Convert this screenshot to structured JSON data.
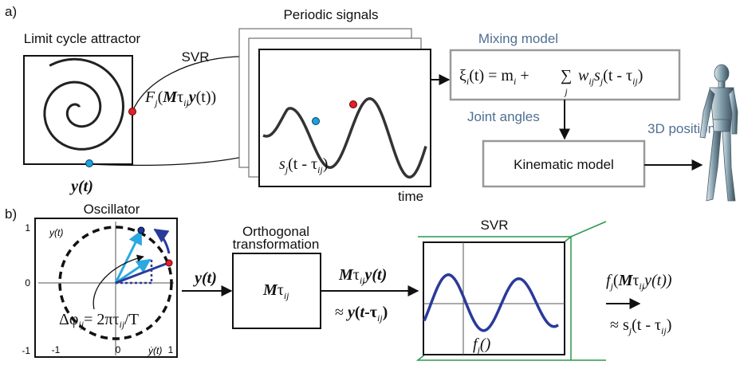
{
  "a": {
    "label": "a)",
    "attractor_title": "Limit cycle attractor",
    "state": "y(t)",
    "svr": "SVR",
    "svr_function": [
      "F",
      "j",
      "(",
      "M",
      "τ",
      "ij",
      "y",
      "(t))"
    ],
    "signals_title": "Periodic signals",
    "signal": [
      "s",
      "j",
      "(t - τ",
      "ij",
      ")"
    ],
    "time_axis": "time",
    "mixing_title": "Mixing model",
    "mixing_formula": [
      "ξ",
      "i",
      "(t) = m",
      "i",
      " + ",
      "∑",
      "j",
      "w",
      "ij",
      "s",
      "j",
      "(t - τ",
      "ij",
      ")"
    ],
    "joint_angles": "Joint angles",
    "positions": "3D positions",
    "kinematic": "Kinematic model"
  },
  "b": {
    "label": "b)",
    "oscillator_title": "Oscillator",
    "y_ticks": [
      "1",
      "0",
      "-1"
    ],
    "x_ticks": [
      "-1",
      "0",
      "1"
    ],
    "y_axis": "y(t)",
    "x_axis": "ẏ(t)",
    "phase": [
      "Δφ",
      "ij",
      "= 2πτ",
      "ij",
      "/T"
    ],
    "input": "y(t)",
    "transform_title": [
      "Orthogonal",
      "transformation"
    ],
    "transform": [
      "M",
      "τ",
      "ij"
    ],
    "transformed": [
      "M",
      "τ",
      "ij",
      "y(t)"
    ],
    "approx": [
      "≈ ",
      "y",
      "(",
      "t",
      "-τ",
      "ij",
      ")"
    ],
    "svr_title": "SVR",
    "svr_function": [
      "f",
      "j",
      "()"
    ],
    "output": [
      "f",
      "j",
      "(",
      "M",
      "τ",
      "ij",
      "y(t))"
    ],
    "output_approx": [
      "≈ s",
      "j",
      "(t - τ",
      "ij",
      ")"
    ]
  }
}
